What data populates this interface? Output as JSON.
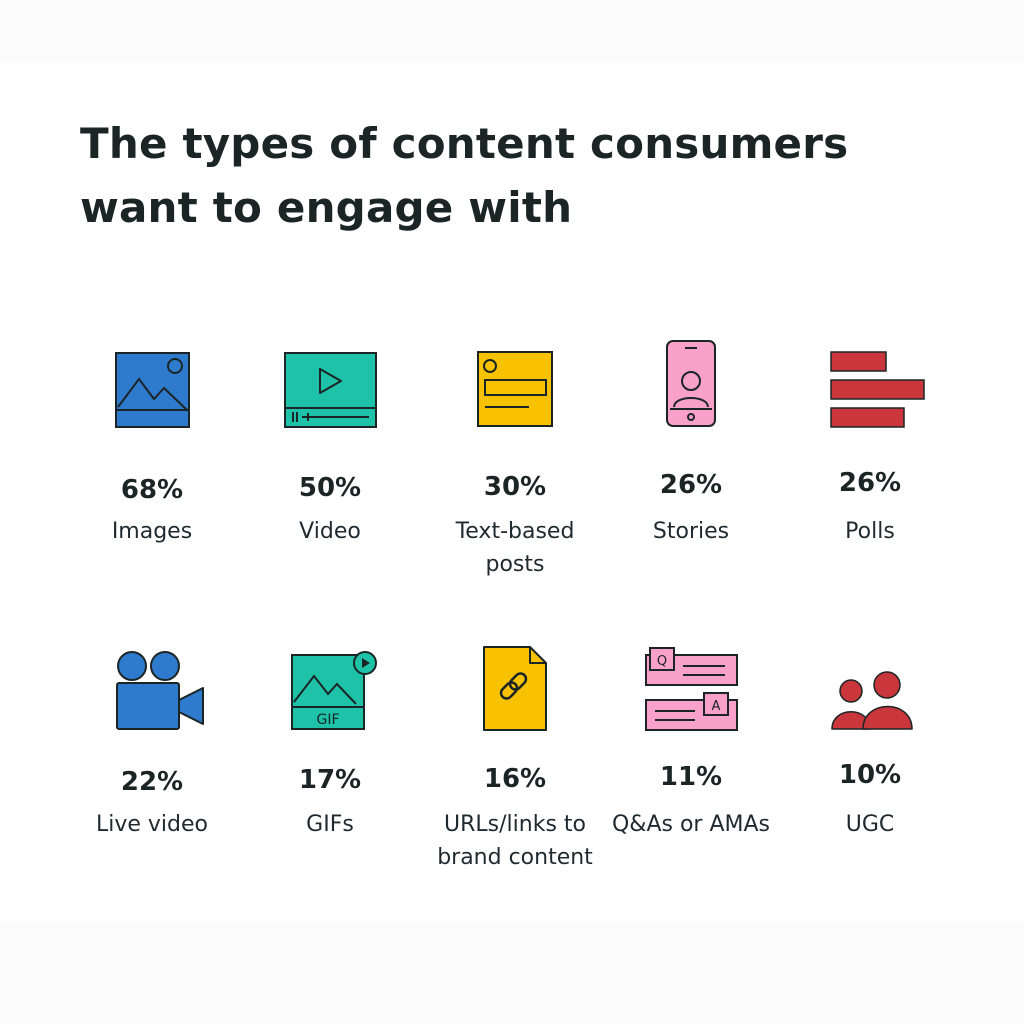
{
  "title": {
    "line1": "The types of content consumers",
    "line2": "want to engage with"
  },
  "items": [
    {
      "icon": "image-icon",
      "value": 68,
      "pct": "68%",
      "label": "Images"
    },
    {
      "icon": "video-player-icon",
      "value": 50,
      "pct": "50%",
      "label": "Video"
    },
    {
      "icon": "text-post-icon",
      "value": 30,
      "pct": "30%",
      "label": "Text-based posts"
    },
    {
      "icon": "smartphone-story-icon",
      "value": 26,
      "pct": "26%",
      "label": "Stories"
    },
    {
      "icon": "poll-bars-icon",
      "value": 26,
      "pct": "26%",
      "label": "Polls"
    },
    {
      "icon": "video-camera-icon",
      "value": 22,
      "pct": "22%",
      "label": "Live video"
    },
    {
      "icon": "gif-icon",
      "value": 17,
      "pct": "17%",
      "label": "GIFs",
      "icon_text": "GIF"
    },
    {
      "icon": "link-document-icon",
      "value": 16,
      "pct": "16%",
      "label": "URLs/links to brand content"
    },
    {
      "icon": "qa-bubbles-icon",
      "value": 11,
      "pct": "11%",
      "label": "Q&As or AMAs",
      "icon_text_q": "Q",
      "icon_text_a": "A"
    },
    {
      "icon": "people-icon",
      "value": 10,
      "pct": "10%",
      "label": "UGC"
    }
  ],
  "colors": {
    "blue": "#2e7bce",
    "teal": "#1dc2a8",
    "yellow": "#f9c200",
    "pink": "#f9a0cb",
    "red": "#c9363b",
    "outline": "#1b2525"
  }
}
